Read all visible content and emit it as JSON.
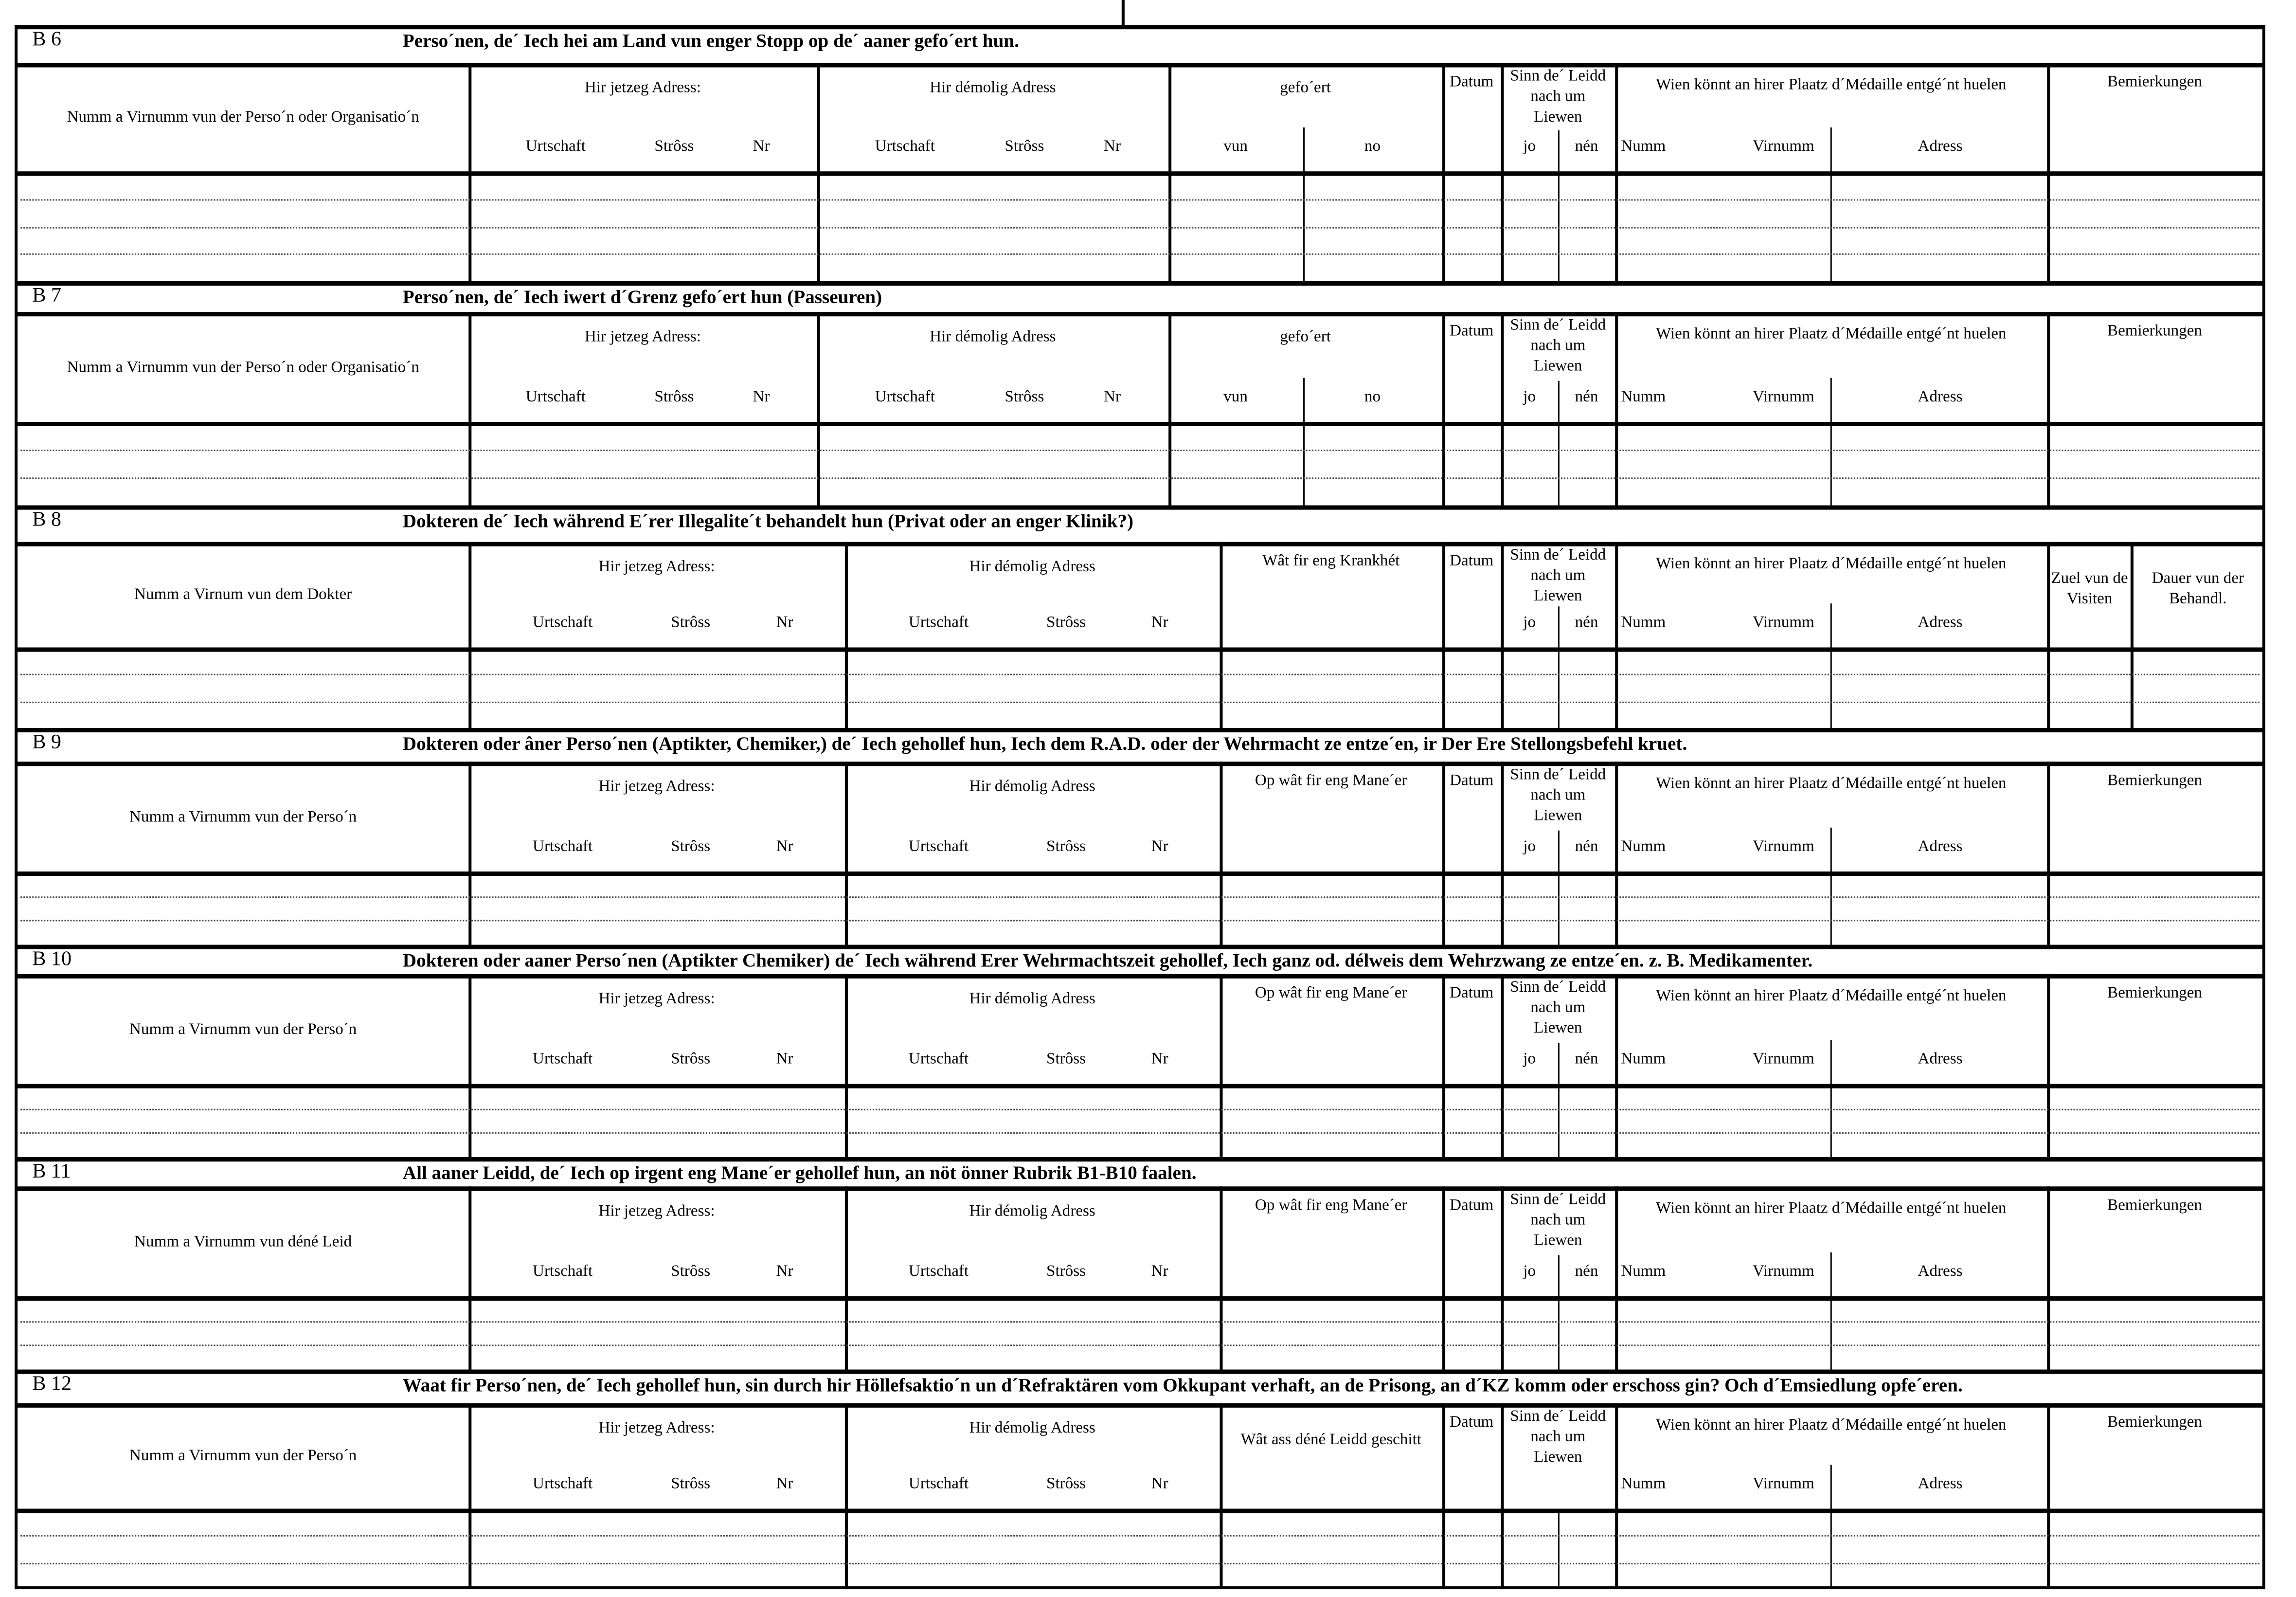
{
  "common": {
    "current_address": "Hir jetzeg Adress:",
    "former_address": "Hir démolig Adress",
    "urtschaft": "Urtschaft",
    "stross": "Strôss",
    "nr": "Nr",
    "datum": "Datum",
    "sinn": "Sinn de´ Leidd nach um Liewen",
    "jo": "jo",
    "nen": "nén",
    "wien": "Wien könnt an hirer Plaatz d´Médaille entgé´nt huelen",
    "numm": "Numm",
    "virnumm": "Virnumm",
    "adress": "Adress",
    "bemierkungen": "Bemierkungen"
  },
  "sections": [
    {
      "code": "B 6",
      "title": "Perso´nen, de´ Iech hei am Land vun enger Stopp  op de´ aaner gefo´ert hun.",
      "name_header": "Numm a Virnumm vun der Perso´n oder Organisatio´n",
      "mid_header": "gefo´ert",
      "vun": "vun",
      "no": "no"
    },
    {
      "code": "B 7",
      "title": "Perso´nen, de´ Iech iwert d´Grenz gefo´ert hun (Passeuren)",
      "name_header": "Numm a Virnumm vun der Perso´n oder Organisatio´n",
      "mid_header": "gefo´ert",
      "vun": "vun",
      "no": "no"
    },
    {
      "code": "B 8",
      "title": "Dokteren de´ Iech während E´rer Illegalite´t behandelt hun (Privat oder an enger Klinik?)",
      "name_header": "Numm a Virnum vun dem Dokter",
      "mid_header": "Wât fir eng Krankhét",
      "zuel": "Zuel vun de Visiten",
      "dauer": "Dauer vun der Behandl."
    },
    {
      "code": "B 9",
      "title": "Dokteren oder âner Perso´nen (Aptikter, Chemiker,) de´ Iech gehollef hun, Iech dem R.A.D. oder der Wehrmacht ze entze´en, ir Der Ere Stellongsbefehl kruet.",
      "name_header": "Numm a Virnumm vun der Perso´n",
      "mid_header": "Op wât fir eng Mane´er"
    },
    {
      "code": "B 10",
      "title": "Dokteren oder aaner Perso´nen (Aptikter Chemiker) de´ Iech während Erer Wehrmachtszeit gehollef, Iech ganz od. délweis dem Wehrzwang ze entze´en. z. B. Medikamenter.",
      "name_header": "Numm a Virnumm vun der Perso´n",
      "mid_header": "Op wât fir eng Mane´er"
    },
    {
      "code": "B 11",
      "title": "All aaner Leidd, de´ Iech op irgent eng Mane´er gehollef hun, an nöt önner Rubrik B1-B10 faalen.",
      "name_header": "Numm a Virnumm vun déné Leid",
      "mid_header": "Op wât fir eng Mane´er"
    },
    {
      "code": "B 12",
      "title": "Waat fir Perso´nen, de´ Iech gehollef hun, sin durch hir Höllefsaktio´n un d´Refraktären vom Okkupant verhaft, an de Prisong, an d´KZ komm oder  erschoss gin? Och d´Emsiedlung opfe´eren.",
      "name_header": "Numm a Virnumm vun der Perso´n",
      "mid_header": "Wât ass déné Leidd geschitt"
    }
  ]
}
